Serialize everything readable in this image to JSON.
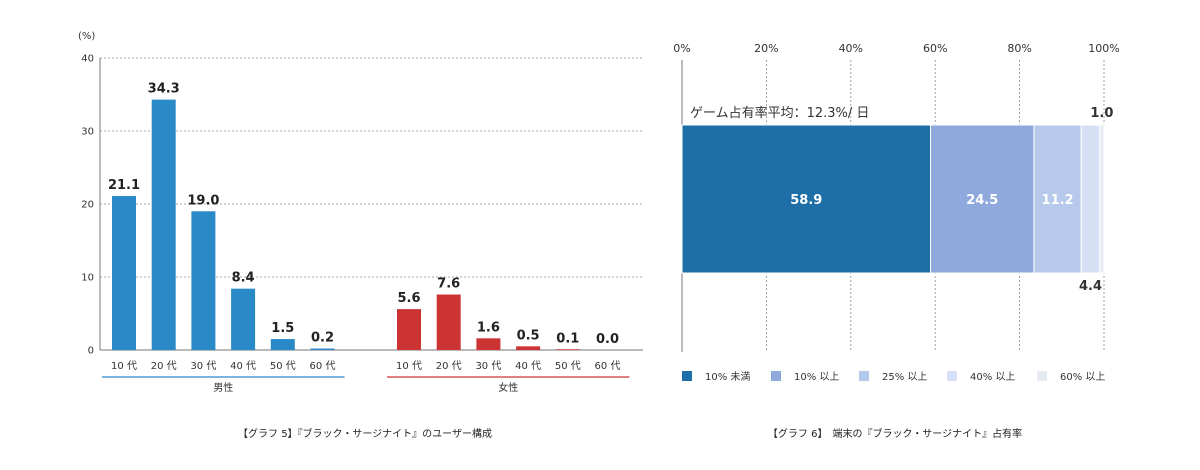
{
  "colors": {
    "male": "#2a8ac7",
    "female": "#cc3333",
    "share_1": "#1e6fa8",
    "share_2": "#8fa9dc",
    "share_3": "#b7c9ea",
    "share_4": "#d5e0f4",
    "share_5": "#e6eaf2"
  },
  "chart_data": [
    {
      "type": "bar",
      "title": "【グラフ 5】『ブラック・サージナイト』のユーザー構成",
      "ylabel": "(%)",
      "ylim": [
        0,
        40
      ],
      "yticks": [
        "0",
        "10",
        "20",
        "30",
        "40"
      ],
      "grid": true,
      "groups": [
        {
          "name": "男性",
          "categories": [
            "10 代",
            "20 代",
            "30 代",
            "40 代",
            "50 代",
            "60 代"
          ],
          "values": [
            21.1,
            34.3,
            19.0,
            8.4,
            1.5,
            0.2
          ],
          "labels": [
            "21.1",
            "34.3",
            "19.0",
            "8.4",
            "1.5",
            "0.2"
          ]
        },
        {
          "name": "女性",
          "categories": [
            "10 代",
            "20 代",
            "30 代",
            "40 代",
            "50 代",
            "60 代"
          ],
          "values": [
            5.6,
            7.6,
            1.6,
            0.5,
            0.1,
            0.0
          ],
          "labels": [
            "5.6",
            "7.6",
            "1.6",
            "0.5",
            "0.1",
            "0.0"
          ]
        }
      ]
    },
    {
      "type": "bar",
      "orientation": "horizontal-stacked",
      "title": "【グラフ 6】　端末の『ブラック・サージナイト』占有率",
      "annotation": "ゲーム占有率平均：12.3%/ 日",
      "xlim": [
        0,
        100
      ],
      "xticks": [
        "0%",
        "20%",
        "40%",
        "60%",
        "80%",
        "100%"
      ],
      "grid": true,
      "legend_position": "bottom",
      "series": [
        {
          "name": "10% 未満",
          "value": 58.9,
          "label": "58.9"
        },
        {
          "name": "10% 以上",
          "value": 24.5,
          "label": "24.5"
        },
        {
          "name": "25% 以上",
          "value": 11.2,
          "label": "11.2"
        },
        {
          "name": "40% 以上",
          "value": 4.4,
          "label": "4.4"
        },
        {
          "name": "60% 以上",
          "value": 1.0,
          "label": "1.0"
        }
      ]
    }
  ]
}
